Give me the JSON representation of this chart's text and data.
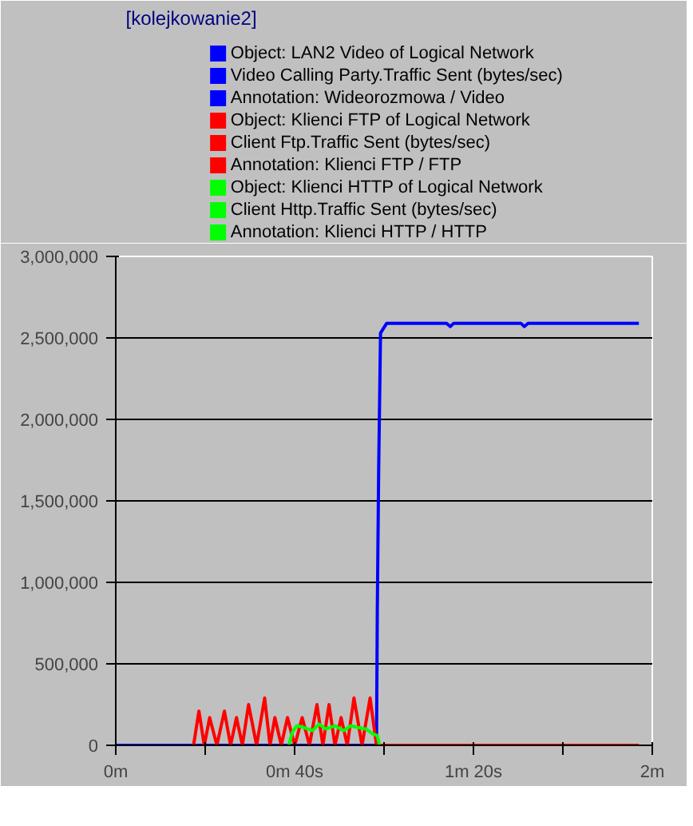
{
  "chart_data": {
    "type": "line",
    "title": "[kolejkowanie2]",
    "xlim": [
      0,
      2
    ],
    "ylim": [
      0,
      3000000
    ],
    "xticks": [
      {
        "value": 0,
        "label": "0m"
      },
      {
        "value": 0.3333,
        "label": null
      },
      {
        "value": 0.6667,
        "label": "0m 40s"
      },
      {
        "value": 1,
        "label": null
      },
      {
        "value": 1.3333,
        "label": "1m 20s"
      },
      {
        "value": 1.6667,
        "label": null
      },
      {
        "value": 2,
        "label": "2m"
      }
    ],
    "yticks": [
      {
        "value": 0,
        "label": "0"
      },
      {
        "value": 500000,
        "label": "500,000"
      },
      {
        "value": 1000000,
        "label": "1,000,000"
      },
      {
        "value": 1500000,
        "label": "1,500,000"
      },
      {
        "value": 2000000,
        "label": "2,000,000"
      },
      {
        "value": 2500000,
        "label": "2,500,000"
      },
      {
        "value": 3000000,
        "label": "3,000,000"
      }
    ],
    "grid": "y",
    "legend": "top",
    "line_style": "solid",
    "marker": "none",
    "series": [
      {
        "name": "Object: LAN2 Video of Logical Network\nVideo Calling Party.Traffic Sent (bytes/sec)\nAnnotation: Wideorozmowa / Video",
        "color": "#0000ff",
        "x": [
          0,
          0.972,
          0.975,
          0.98,
          0.987,
          1.01,
          1.233,
          1.247,
          1.26,
          1.51,
          1.523,
          1.537,
          1.95
        ],
        "values": [
          0,
          0,
          830000,
          1690000,
          2530000,
          2590000,
          2590000,
          2570000,
          2590000,
          2590000,
          2570000,
          2590000,
          2590000
        ]
      },
      {
        "name": "Object: Klienci FTP of Logical Network\nClient Ftp.Traffic Sent (bytes/sec)\nAnnotation: Klienci FTP / FTP",
        "color": "#ff0000",
        "x": [
          0.29,
          0.31,
          0.33,
          0.35,
          0.377,
          0.405,
          0.428,
          0.45,
          0.472,
          0.495,
          0.525,
          0.555,
          0.575,
          0.593,
          0.617,
          0.64,
          0.667,
          0.695,
          0.722,
          0.75,
          0.772,
          0.795,
          0.817,
          0.84,
          0.863,
          0.888,
          0.918,
          0.948,
          0.972,
          1.95
        ],
        "values": [
          0,
          210000,
          0,
          170000,
          0,
          210000,
          0,
          170000,
          0,
          250000,
          0,
          290000,
          0,
          170000,
          0,
          170000,
          0,
          170000,
          0,
          250000,
          0,
          250000,
          0,
          170000,
          0,
          290000,
          0,
          290000,
          0,
          0
        ]
      },
      {
        "name": "Object: Klienci HTTP of Logical Network\nClient Http.Traffic Sent (bytes/sec)\nAnnotation: Klienci HTTP / HTTP",
        "color": "#00ff00",
        "x": [
          0.645,
          0.658,
          0.675,
          0.7,
          0.733,
          0.758,
          0.783,
          0.817,
          0.85,
          0.875,
          0.9,
          0.933,
          0.958,
          0.975,
          0.983
        ],
        "values": [
          0,
          80000,
          120000,
          110000,
          90000,
          130000,
          100000,
          120000,
          90000,
          120000,
          110000,
          100000,
          70000,
          60000,
          0
        ]
      }
    ]
  }
}
